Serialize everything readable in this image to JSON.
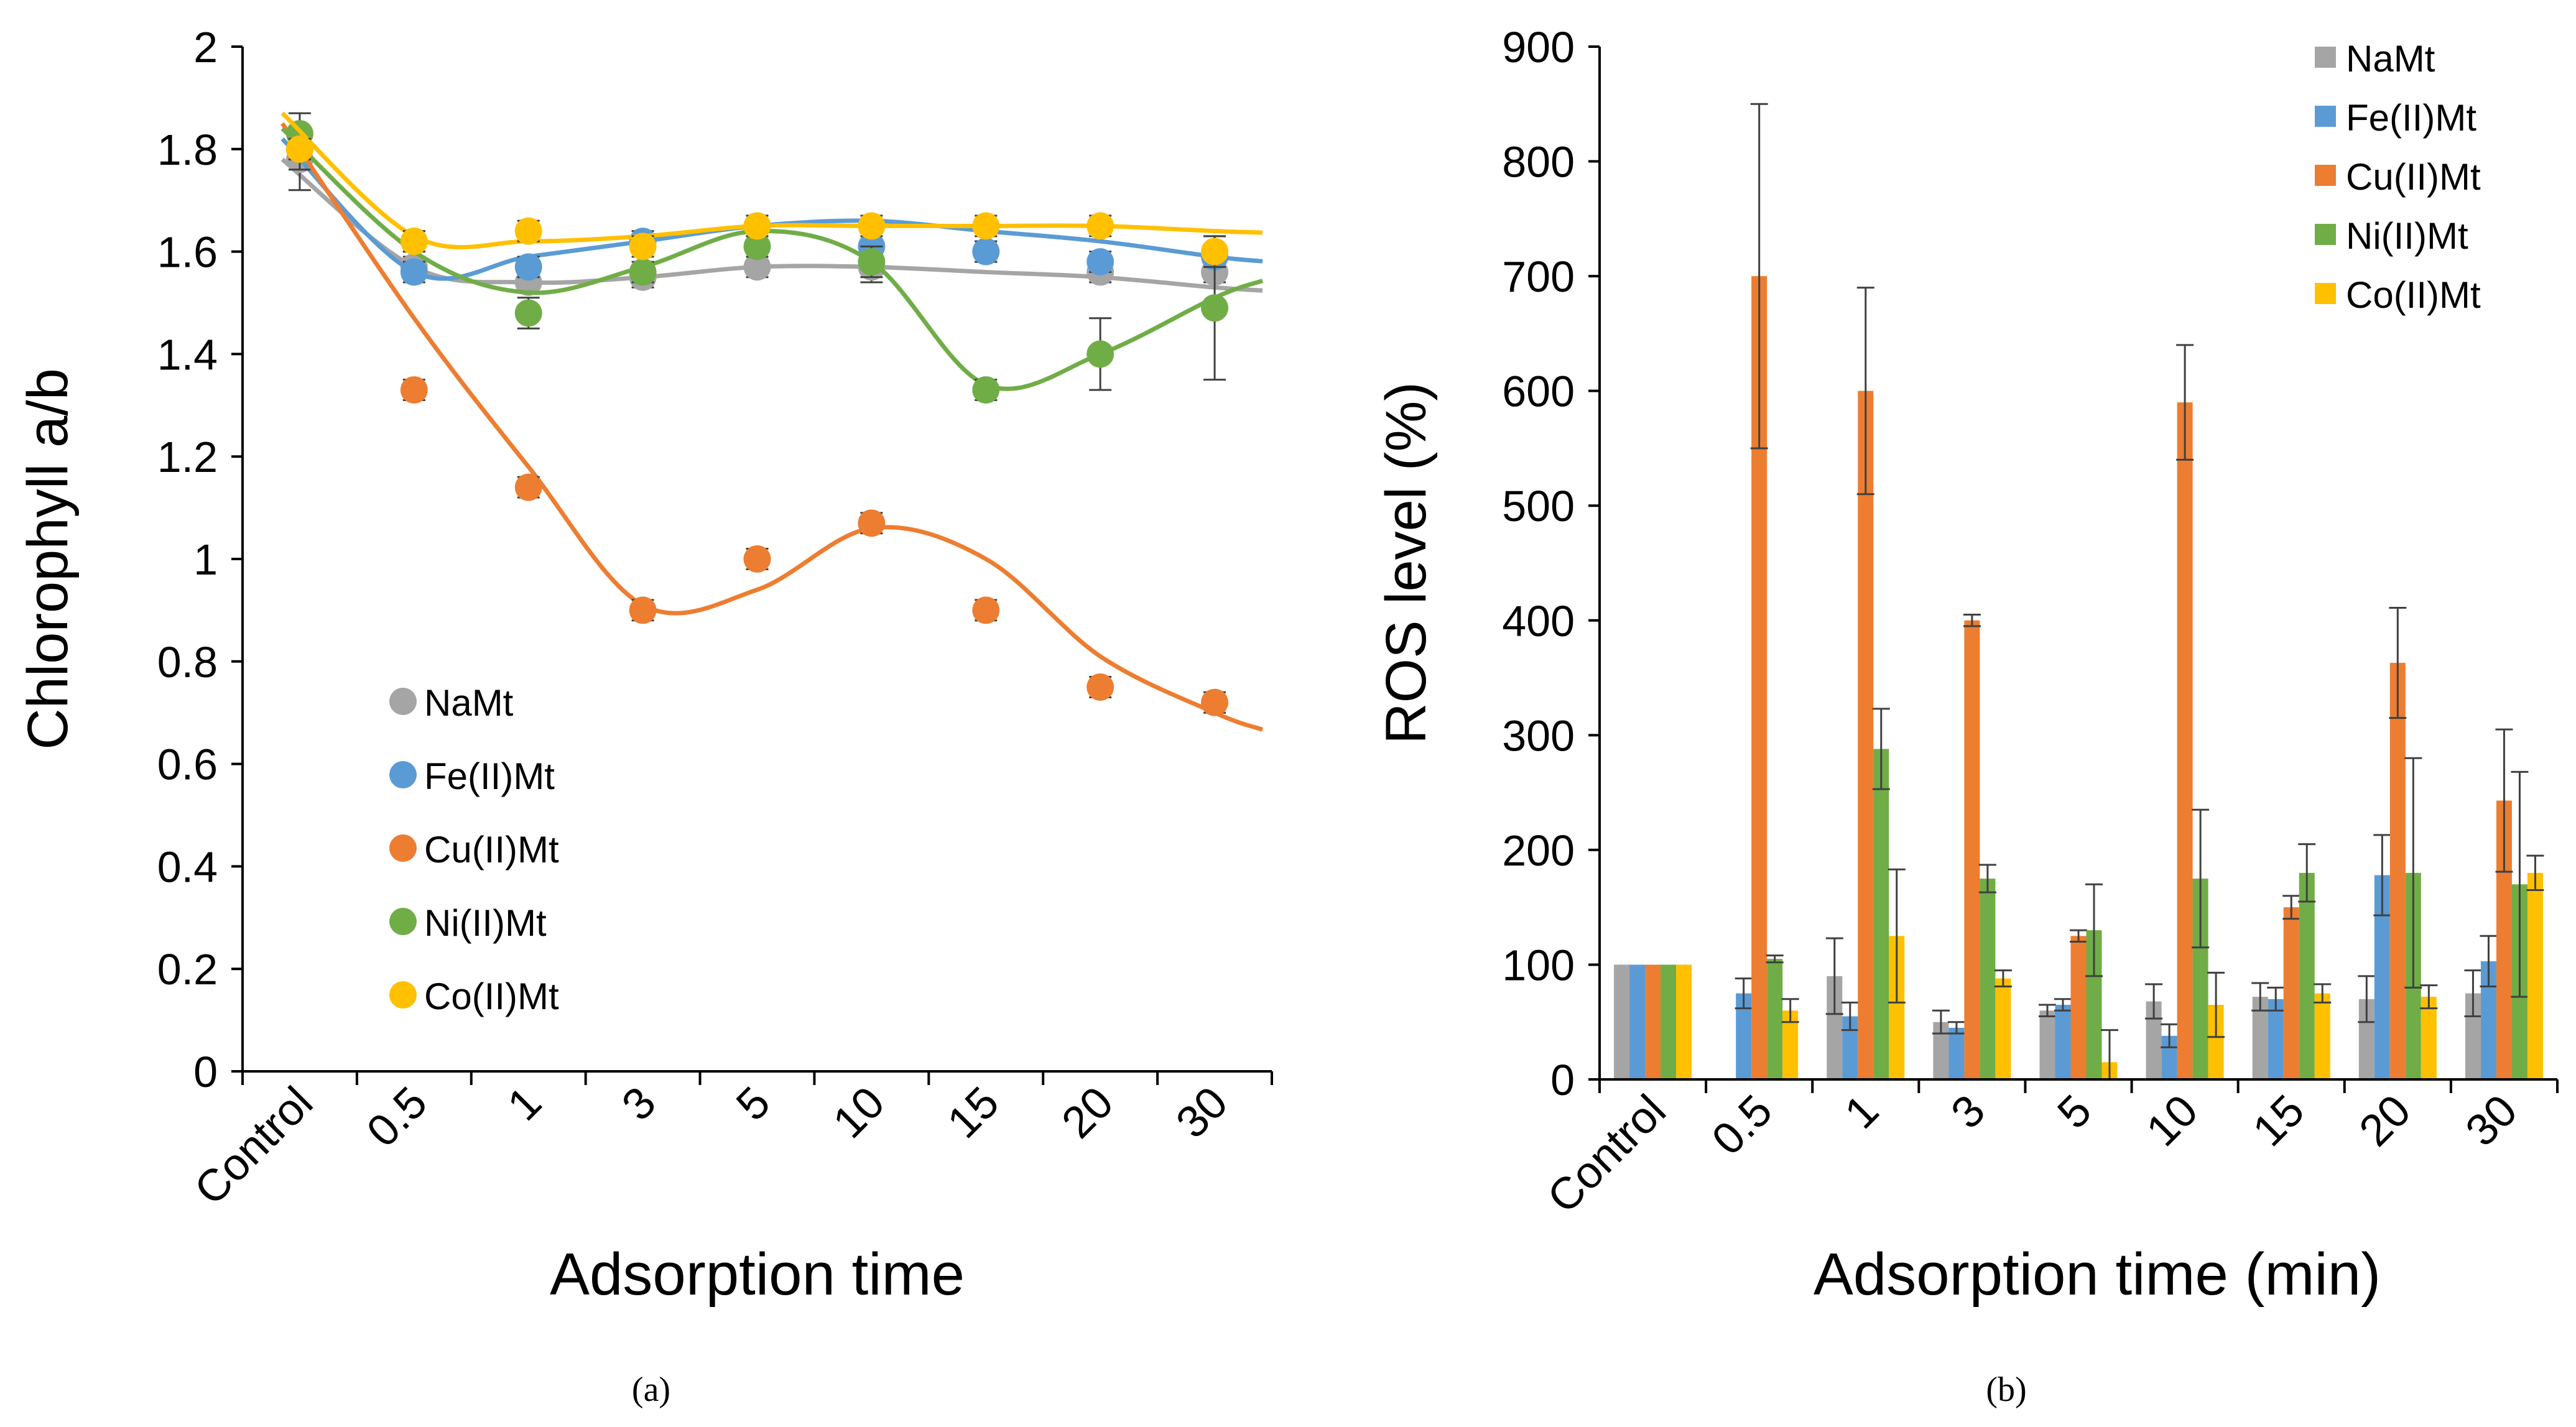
{
  "chart_data": [
    {
      "type": "scatter",
      "panel_label": "(a)",
      "title": "",
      "xlabel": "Adsorption time",
      "ylabel": "Chlorophyll a/b",
      "categories": [
        "Control",
        "0.5",
        "1",
        "3",
        "5",
        "10",
        "15",
        "20",
        "30"
      ],
      "ylim": [
        0,
        2
      ],
      "yticks": [
        "0",
        "0.2",
        "0.4",
        "0.6",
        "0.8",
        "1",
        "1.2",
        "1.4",
        "1.6",
        "1.8",
        "2"
      ],
      "legend_position": "bottom-left",
      "series": [
        {
          "name": "NaMt",
          "color": "#a5a5a5",
          "values": [
            1.78,
            1.57,
            1.54,
            1.55,
            1.57,
            1.57,
            1.6,
            1.56,
            1.56
          ],
          "errors": [
            0.06,
            0.02,
            0.02,
            0.02,
            0.02,
            0.03,
            0.02,
            0.02,
            0.02
          ],
          "trend": [
            1.78,
            1.57,
            1.54,
            1.55,
            1.57,
            1.57,
            1.56,
            1.55,
            1.53
          ]
        },
        {
          "name": "Fe(II)Mt",
          "color": "#5b9bd5",
          "values": [
            1.8,
            1.56,
            1.57,
            1.62,
            1.65,
            1.61,
            1.6,
            1.58,
            1.59
          ],
          "errors": [
            0.04,
            0.02,
            0.02,
            0.02,
            0.02,
            0.03,
            0.02,
            0.02,
            0.02
          ],
          "trend": [
            1.82,
            1.56,
            1.59,
            1.62,
            1.65,
            1.66,
            1.64,
            1.62,
            1.59
          ]
        },
        {
          "name": "Cu(II)Mt",
          "color": "#ed7d31",
          "values": [
            1.8,
            1.33,
            1.14,
            0.9,
            1.0,
            1.07,
            0.9,
            0.75,
            0.72
          ],
          "errors": [
            0.02,
            0.02,
            0.02,
            0.02,
            0.02,
            0.02,
            0.02,
            0.02,
            0.02
          ],
          "trend": [
            1.85,
            1.47,
            1.18,
            0.91,
            0.94,
            1.06,
            1.0,
            0.81,
            0.7
          ]
        },
        {
          "name": "Ni(II)Mt",
          "color": "#70ad47",
          "values": [
            1.83,
            1.62,
            1.48,
            1.56,
            1.61,
            1.58,
            1.33,
            1.4,
            1.49
          ],
          "errors": [
            0.04,
            0.02,
            0.03,
            0.02,
            0.02,
            0.03,
            0.02,
            0.07,
            0.14
          ],
          "trend": [
            1.84,
            1.6,
            1.52,
            1.57,
            1.64,
            1.58,
            1.34,
            1.4,
            1.51
          ]
        },
        {
          "name": "Co(II)Mt",
          "color": "#ffc000",
          "values": [
            1.8,
            1.62,
            1.64,
            1.61,
            1.65,
            1.65,
            1.65,
            1.65,
            1.6
          ],
          "errors": [
            0.02,
            0.02,
            0.02,
            0.02,
            0.02,
            0.02,
            0.02,
            0.02,
            0.03
          ],
          "trend": [
            1.87,
            1.63,
            1.62,
            1.63,
            1.65,
            1.65,
            1.65,
            1.65,
            1.64
          ]
        }
      ]
    },
    {
      "type": "bar",
      "panel_label": "(b)",
      "title": "",
      "xlabel": "Adsorption time (min)",
      "ylabel": "ROS level (%)",
      "categories": [
        "Control",
        "0.5",
        "1",
        "3",
        "5",
        "10",
        "15",
        "20",
        "30"
      ],
      "ylim": [
        0,
        900
      ],
      "yticks": [
        "0",
        "100",
        "200",
        "300",
        "400",
        "500",
        "600",
        "700",
        "800",
        "900"
      ],
      "legend_position": "top-right",
      "series": [
        {
          "name": "NaMt",
          "color": "#a5a5a5",
          "values": [
            100,
            0,
            90,
            50,
            60,
            68,
            72,
            70,
            75
          ],
          "errors": [
            0,
            0,
            33,
            10,
            5,
            15,
            12,
            20,
            20
          ]
        },
        {
          "name": "Fe(II)Mt",
          "color": "#5b9bd5",
          "values": [
            100,
            75,
            55,
            45,
            65,
            38,
            70,
            178,
            103
          ],
          "errors": [
            0,
            13,
            12,
            5,
            5,
            10,
            10,
            35,
            22
          ]
        },
        {
          "name": "Cu(II)Mt",
          "color": "#ed7d31",
          "values": [
            100,
            700,
            600,
            400,
            125,
            590,
            150,
            363,
            243
          ],
          "errors": [
            0,
            150,
            90,
            5,
            5,
            50,
            10,
            48,
            62
          ]
        },
        {
          "name": "Ni(II)Mt",
          "color": "#70ad47",
          "values": [
            100,
            105,
            288,
            175,
            130,
            175,
            180,
            180,
            170
          ],
          "errors": [
            0,
            3,
            35,
            12,
            40,
            60,
            25,
            100,
            98
          ]
        },
        {
          "name": "Co(II)Mt",
          "color": "#ffc000",
          "values": [
            100,
            60,
            125,
            88,
            15,
            65,
            75,
            72,
            180
          ],
          "errors": [
            0,
            10,
            58,
            7,
            28,
            28,
            8,
            10,
            15
          ]
        }
      ]
    }
  ]
}
